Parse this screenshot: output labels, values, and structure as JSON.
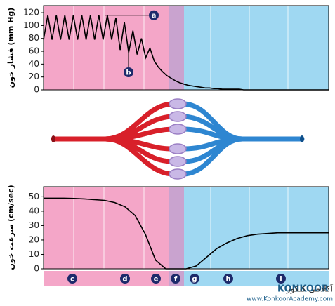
{
  "chart_data": [
    {
      "type": "line",
      "y_label": "فشار خون (mm Hg)",
      "ylim": [
        0,
        131
      ],
      "yticks": [
        0,
        20,
        40,
        60,
        80,
        100,
        120
      ],
      "color": "#000000",
      "annotations": [
        "a",
        "b"
      ],
      "values": [
        78,
        116,
        78,
        116,
        78,
        116,
        78,
        116,
        78,
        116,
        78,
        116,
        78,
        116,
        78,
        116,
        78,
        112,
        62,
        105,
        58,
        92,
        55,
        80,
        50,
        65,
        45,
        35,
        28,
        22,
        18,
        14,
        11,
        9,
        7,
        6,
        5,
        4,
        3,
        3,
        2,
        2,
        1,
        1,
        1,
        1,
        1,
        0,
        0,
        0,
        0,
        0,
        0,
        0,
        0,
        0,
        0,
        0,
        0,
        0,
        0,
        0,
        0,
        0,
        0,
        0,
        0,
        0
      ]
    },
    {
      "type": "line",
      "y_label": "سرعت خون (cm/sec)",
      "ylim": [
        0,
        57
      ],
      "yticks": [
        0,
        10,
        20,
        30,
        40,
        50
      ],
      "color": "#000000",
      "values": [
        49,
        49,
        49,
        48.8,
        48.5,
        48,
        47.5,
        46,
        43,
        37,
        24,
        6,
        0,
        0,
        0,
        2,
        8,
        14,
        18,
        21,
        23,
        24,
        24.5,
        25,
        25,
        25,
        25,
        25,
        25
      ]
    }
  ],
  "regions": [
    "c",
    "d",
    "e",
    "f",
    "g",
    "h",
    "i"
  ],
  "logo": {
    "name": "آکادمی کنکور",
    "brand": "KONKOOR",
    "url": "www.KonkoorAcademy.com"
  }
}
